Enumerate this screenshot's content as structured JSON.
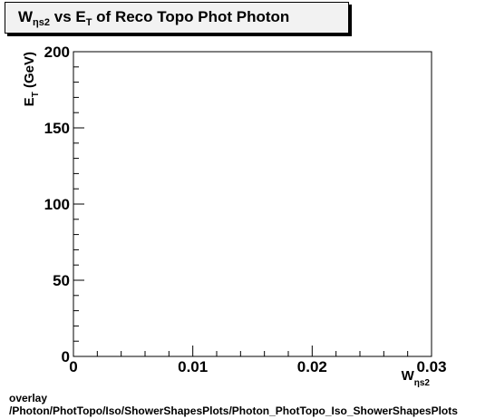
{
  "title": {
    "main": "W",
    "main_sub": "ηs2",
    "mid": " vs E",
    "mid_sub": "T",
    "rest": " of Reco Topo Phot Photon"
  },
  "chart_data": {
    "type": "scatter",
    "title": "Wηs2 vs ET of Reco Topo Phot Photon",
    "xlabel": "Wηs2",
    "ylabel": "ET (GeV)",
    "xlim": [
      0,
      0.03
    ],
    "ylim": [
      0,
      200
    ],
    "x_ticks": [
      0,
      0.01,
      0.02,
      0.03
    ],
    "x_tick_labels": [
      "0",
      "0.01",
      "0.02",
      "0.03"
    ],
    "y_ticks": [
      0,
      50,
      100,
      150,
      200
    ],
    "y_tick_labels": [
      "0",
      "50",
      "100",
      "150",
      "200"
    ],
    "series": [],
    "grid": false
  },
  "axes": {
    "xlabel_main": "W",
    "xlabel_sub": "ηs2",
    "ylabel_main": "E",
    "ylabel_sub": "T",
    "ylabel_rest": " (GeV)"
  },
  "footer": {
    "line1": "overlay",
    "line2": "/Photon/PhotTopo/Iso/ShowerShapesPlots/Photon_PhotTopo_Iso_ShowerShapesPlots"
  }
}
